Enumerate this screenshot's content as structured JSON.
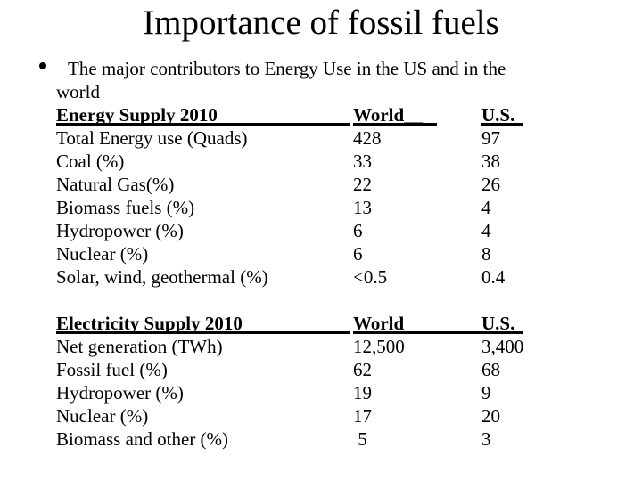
{
  "page": {
    "background": "#ffffff",
    "text_color": "#000000"
  },
  "title": "Importance of fossil fuels",
  "bullet": {
    "line1": "The major contributors to Energy Use in the US and in the",
    "line2": "world"
  },
  "table1": {
    "header": {
      "label": "Energy Supply 2010",
      "world": "World__",
      "us": "U.S."
    },
    "rows": [
      {
        "label": "Total Energy use (Quads)",
        "world": "428",
        "us": "97"
      },
      {
        "label": "Coal (%)",
        "world": "33",
        "us": "38"
      },
      {
        "label": "Natural Gas(%)",
        "world": "22",
        "us": "26"
      },
      {
        "label": "Biomass fuels (%)",
        "world": "13",
        "us": "4"
      },
      {
        "label": "Hydropower (%)",
        "world": "6",
        "us": "4"
      },
      {
        "label": "Nuclear (%)",
        "world": "6",
        "us": "8"
      },
      {
        "label": "Solar, wind, geothermal (%)",
        "world": "<0.5",
        "us": "0.4"
      }
    ]
  },
  "table2": {
    "header": {
      "label": "Electricity Supply 2010",
      "world": "World",
      "us": "U.S."
    },
    "rows": [
      {
        "label": "Net generation (TWh)",
        "world": "12,500",
        "us": "3,400"
      },
      {
        "label": "Fossil fuel (%)",
        "world": "62",
        "us": "68"
      },
      {
        "label": "Hydropower (%)",
        "world": "19",
        "us": "9"
      },
      {
        "label": "Nuclear (%)",
        "world": "17",
        "us": "20"
      },
      {
        "label": "Biomass and other (%)",
        "world": " 5",
        "us": "3"
      }
    ]
  }
}
